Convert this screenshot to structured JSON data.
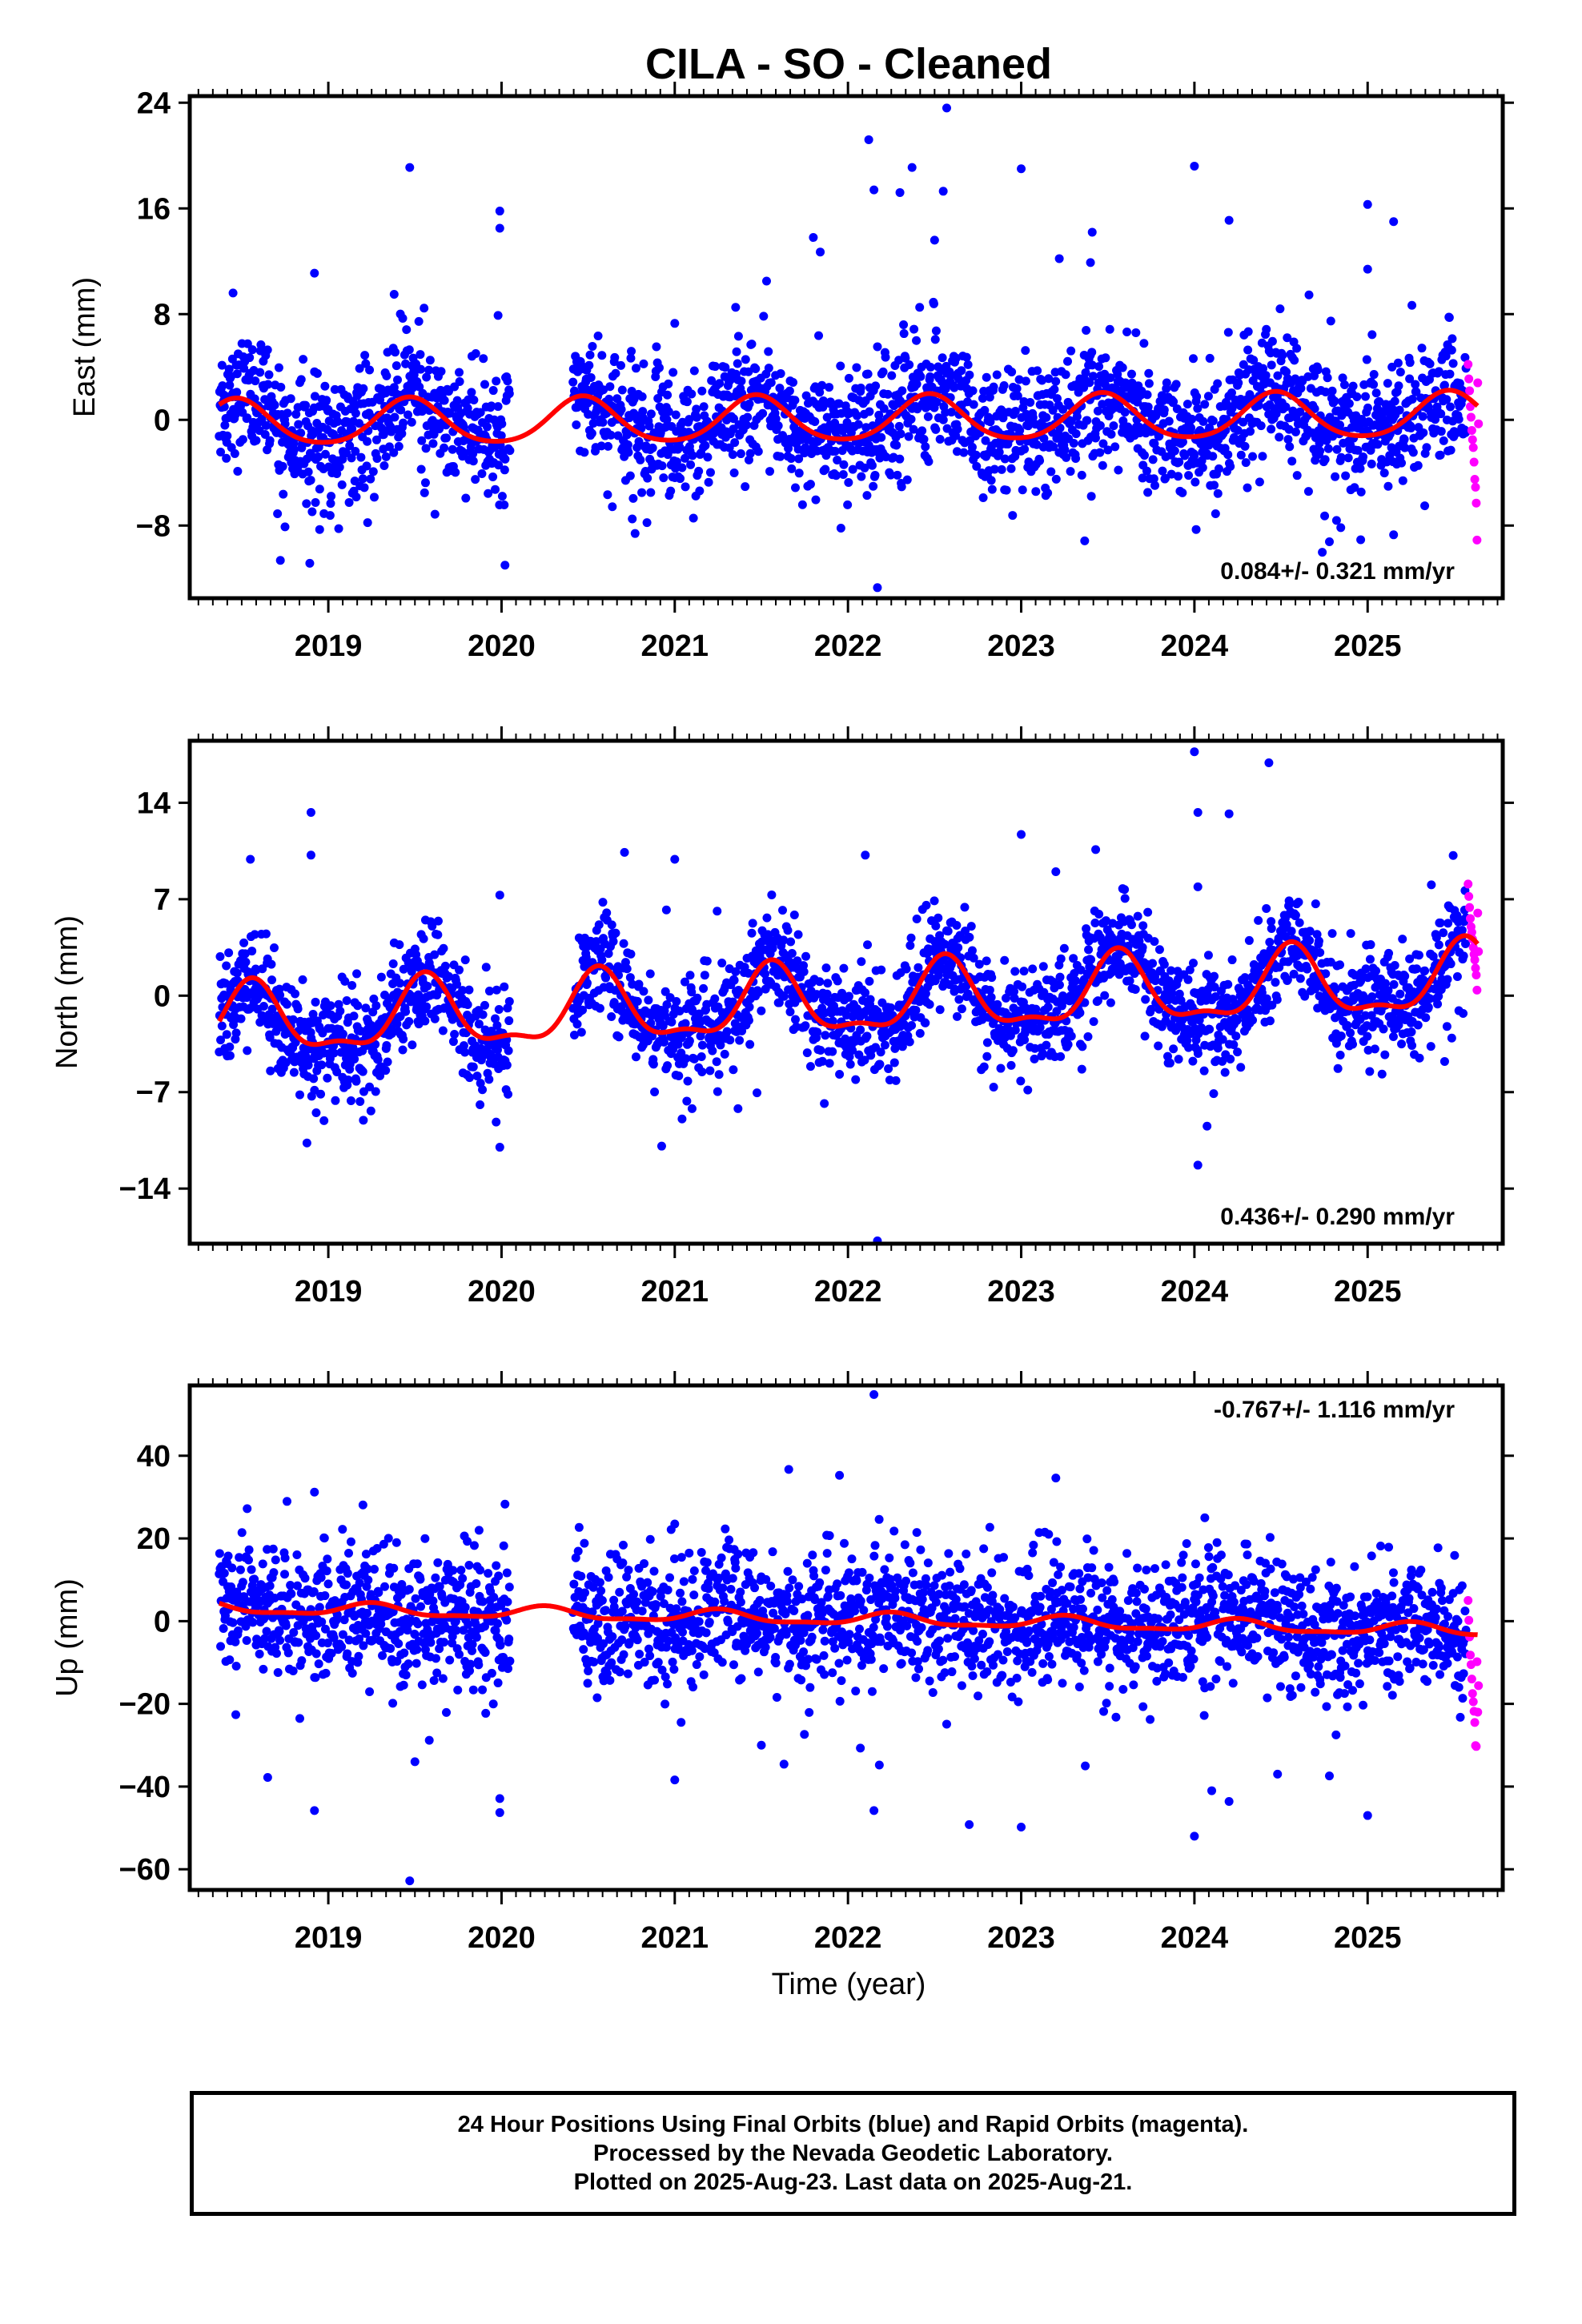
{
  "title": "CILA  - SO - Cleaned",
  "xlabel": "Time (year)",
  "x_tick_labels": [
    "2019",
    "2020",
    "2021",
    "2022",
    "2023",
    "2024",
    "2025"
  ],
  "footer": {
    "line1": "24 Hour Positions Using Final Orbits (blue) and Rapid Orbits (magenta).",
    "line2": "Processed by the Nevada Geodetic Laboratory.",
    "line3": "Plotted on 2025-Aug-23. Last data on 2025-Aug-21."
  },
  "colors": {
    "final_orbits": "#0000ff",
    "rapid_orbits": "#ff00ff",
    "model_fit": "#ff0000",
    "frame": "#000000"
  },
  "chart_data": [
    {
      "type": "scatter",
      "component": "east",
      "ylabel": "East (mm)",
      "xlim": [
        2018.2,
        2025.78
      ],
      "ylim": [
        -13.5,
        24.5
      ],
      "xticks": [
        2019,
        2020,
        2021,
        2022,
        2023,
        2024,
        2025
      ],
      "yticks": [
        24,
        16,
        8,
        0,
        -8
      ],
      "ytick_labels": [
        "24",
        "16",
        "8",
        "0",
        "−8"
      ],
      "rate_label": "0.084+/- 0.321 mm/yr",
      "rate_position": "bottom-right",
      "final_orbits_span": [
        2018.37,
        2025.57
      ],
      "data_gap": [
        2020.05,
        2020.41
      ],
      "rapid_orbits_span": [
        2025.58,
        2025.64
      ],
      "scatter_spread_mm": 2.3,
      "rapid_values": [
        4.2,
        3.1,
        2.2,
        1.0,
        0.2,
        -0.8,
        -1.5,
        -2.1,
        -3.2,
        -4.5,
        -5.1,
        -6.3,
        -9.1,
        2.8,
        -0.3
      ],
      "outliers": [
        {
          "x": 2018.45,
          "y": 9.6
        },
        {
          "x": 2018.92,
          "y": 11.1
        },
        {
          "x": 2018.95,
          "y": -8.3
        },
        {
          "x": 2019.47,
          "y": 19.1
        },
        {
          "x": 2019.38,
          "y": 9.5
        },
        {
          "x": 2019.99,
          "y": 15.8
        },
        {
          "x": 2019.99,
          "y": 14.5
        },
        {
          "x": 2020.02,
          "y": -11.0
        },
        {
          "x": 2019.98,
          "y": 7.9
        },
        {
          "x": 2021.0,
          "y": 7.3
        },
        {
          "x": 2021.8,
          "y": 13.8
        },
        {
          "x": 2021.84,
          "y": 12.7
        },
        {
          "x": 2022.12,
          "y": 21.2
        },
        {
          "x": 2022.15,
          "y": 17.4
        },
        {
          "x": 2022.3,
          "y": 17.2
        },
        {
          "x": 2022.37,
          "y": 19.1
        },
        {
          "x": 2022.57,
          "y": 23.6
        },
        {
          "x": 2022.55,
          "y": 17.3
        },
        {
          "x": 2022.17,
          "y": -12.7
        },
        {
          "x": 2022.5,
          "y": 13.6
        },
        {
          "x": 2023.0,
          "y": 19.0
        },
        {
          "x": 2023.41,
          "y": 14.2
        },
        {
          "x": 2023.4,
          "y": 11.9
        },
        {
          "x": 2024.0,
          "y": 19.2
        },
        {
          "x": 2024.2,
          "y": 15.1
        },
        {
          "x": 2024.01,
          "y": -8.3
        },
        {
          "x": 2025.0,
          "y": 16.3
        },
        {
          "x": 2025.0,
          "y": 11.4
        },
        {
          "x": 2025.15,
          "y": 15.0
        },
        {
          "x": 2025.15,
          "y": -8.7
        },
        {
          "x": 2023.22,
          "y": 12.2
        },
        {
          "x": 2021.53,
          "y": 10.5
        },
        {
          "x": 2018.75,
          "y": -8.1
        }
      ],
      "model_fit": {
        "color": "#ff0000",
        "annual_mm": 1.7,
        "semiannual_mm": 0.25,
        "mean_mm": 0.0,
        "rate_mm_per_yr": 0.084,
        "peak_phase_yr": 0.47
      }
    },
    {
      "type": "scatter",
      "component": "north",
      "ylabel": "North (mm)",
      "xlim": [
        2018.2,
        2025.78
      ],
      "ylim": [
        -18,
        18.5
      ],
      "xticks": [
        2019,
        2020,
        2021,
        2022,
        2023,
        2024,
        2025
      ],
      "yticks": [
        14,
        7,
        0,
        -7,
        -14
      ],
      "ytick_labels": [
        "14",
        "7",
        "0",
        "−7",
        "−14"
      ],
      "rate_label": "0.436+/- 0.290 mm/yr",
      "rate_position": "bottom-right",
      "final_orbits_span": [
        2018.37,
        2025.57
      ],
      "data_gap": [
        2020.05,
        2020.41
      ],
      "rapid_orbits_span": [
        2025.58,
        2025.64
      ],
      "scatter_spread_mm": 1.8,
      "rapid_values": [
        8.1,
        7.2,
        6.4,
        5.6,
        5.0,
        4.6,
        4.1,
        3.5,
        3.0,
        2.6,
        2.0,
        1.5,
        0.4,
        6.0,
        3.2
      ],
      "outliers": [
        {
          "x": 2018.9,
          "y": 13.3
        },
        {
          "x": 2018.9,
          "y": 10.2
        },
        {
          "x": 2019.99,
          "y": 7.3
        },
        {
          "x": 2019.99,
          "y": -11.0
        },
        {
          "x": 2021.0,
          "y": 9.9
        },
        {
          "x": 2022.17,
          "y": -17.8
        },
        {
          "x": 2023.0,
          "y": 11.7
        },
        {
          "x": 2023.2,
          "y": 9.0
        },
        {
          "x": 2023.43,
          "y": 10.6
        },
        {
          "x": 2024.0,
          "y": 17.7
        },
        {
          "x": 2024.02,
          "y": 13.3
        },
        {
          "x": 2024.2,
          "y": 13.2
        },
        {
          "x": 2024.02,
          "y": -12.3
        },
        {
          "x": 2024.43,
          "y": 16.9
        },
        {
          "x": 2024.02,
          "y": 7.9
        },
        {
          "x": 2021.1,
          "y": -8.2
        },
        {
          "x": 2018.93,
          "y": -8.5
        },
        {
          "x": 2018.55,
          "y": 9.9
        },
        {
          "x": 2022.1,
          "y": 10.2
        },
        {
          "x": 2020.71,
          "y": 10.4
        }
      ],
      "model_fit": {
        "color": "#ff0000",
        "annual_mm": 2.4,
        "semiannual_mm": 0.9,
        "mean_mm": -0.5,
        "rate_mm_per_yr": 0.436,
        "peak_phase_yr": 0.56
      }
    },
    {
      "type": "scatter",
      "component": "up",
      "ylabel": "Up (mm)",
      "xlim": [
        2018.2,
        2025.78
      ],
      "ylim": [
        -65,
        57
      ],
      "xticks": [
        2019,
        2020,
        2021,
        2022,
        2023,
        2024,
        2025
      ],
      "yticks": [
        40,
        20,
        0,
        -20,
        -40,
        -60
      ],
      "ytick_labels": [
        "40",
        "20",
        "0",
        "−20",
        "−40",
        "−60"
      ],
      "rate_label": "-0.767+/- 1.116 mm/yr",
      "rate_position": "top-right",
      "final_orbits_span": [
        2018.37,
        2025.57
      ],
      "data_gap": [
        2020.05,
        2020.41
      ],
      "rapid_orbits_span": [
        2025.58,
        2025.64
      ],
      "scatter_spread_mm": 7.5,
      "rapid_values": [
        5.0,
        0.2,
        -3.8,
        -8.2,
        -10.5,
        -14.0,
        -17.5,
        -19.5,
        -21.8,
        -24.5,
        -30.1,
        -30.3,
        -9.8,
        -22.0,
        -15.6
      ],
      "outliers": [
        {
          "x": 2022.15,
          "y": 54.8
        },
        {
          "x": 2019.47,
          "y": -62.8
        },
        {
          "x": 2018.92,
          "y": 31.2
        },
        {
          "x": 2019.2,
          "y": 28.1
        },
        {
          "x": 2020.02,
          "y": 28.3
        },
        {
          "x": 2018.92,
          "y": -45.8
        },
        {
          "x": 2019.99,
          "y": -42.9
        },
        {
          "x": 2019.99,
          "y": -46.3
        },
        {
          "x": 2021.0,
          "y": -38.4
        },
        {
          "x": 2022.15,
          "y": -45.8
        },
        {
          "x": 2022.7,
          "y": -49.2
        },
        {
          "x": 2023.0,
          "y": -49.8
        },
        {
          "x": 2023.2,
          "y": 34.6
        },
        {
          "x": 2024.0,
          "y": -52.0
        },
        {
          "x": 2024.06,
          "y": 25.0
        },
        {
          "x": 2024.2,
          "y": -43.6
        },
        {
          "x": 2025.0,
          "y": -47.0
        },
        {
          "x": 2024.1,
          "y": -41.0
        },
        {
          "x": 2018.65,
          "y": -37.8
        },
        {
          "x": 2023.37,
          "y": -35.0
        },
        {
          "x": 2024.48,
          "y": -37.0
        },
        {
          "x": 2021.5,
          "y": -30.0
        },
        {
          "x": 2019.5,
          "y": -34.0
        },
        {
          "x": 2022.18,
          "y": 24.6
        },
        {
          "x": 2021.0,
          "y": 23.5
        }
      ],
      "model_fit": {
        "color": "#ff0000",
        "annual_mm": 1.4,
        "semiannual_mm": 0.5,
        "mean_mm": 0.5,
        "rate_mm_per_yr": -0.767,
        "peak_phase_yr": 0.25
      }
    }
  ]
}
